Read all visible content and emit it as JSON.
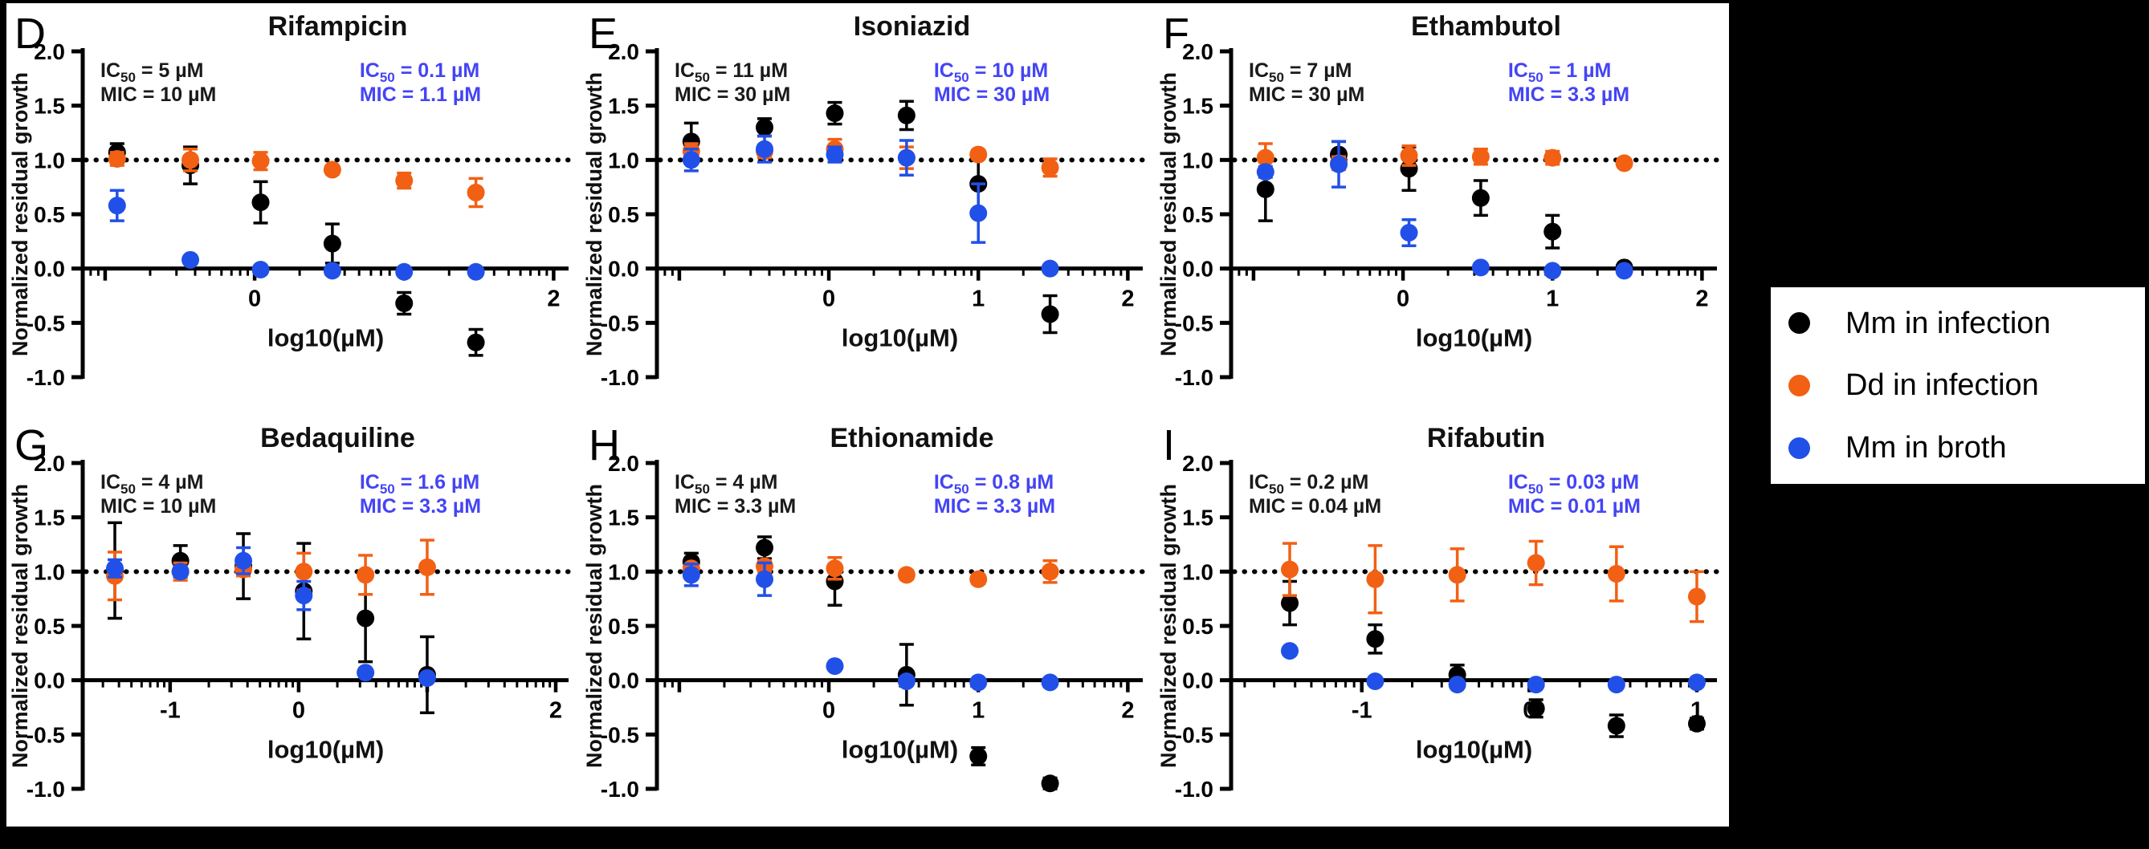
{
  "colors": {
    "series_black": "#000000",
    "series_orange": "#F26014",
    "series_blue": "#2150E8",
    "annotation_black": "#1a1a1a",
    "annotation_blue": "#4444F5",
    "panel_background": "#FFFFFF",
    "canvas_background": "#000000"
  },
  "legend": {
    "items": [
      {
        "label": "Mm in infection",
        "color": "#000000"
      },
      {
        "label": "Dd in infection",
        "color": "#F26014"
      },
      {
        "label": "Mm in broth",
        "color": "#2150E8"
      }
    ]
  },
  "chart_data": [
    {
      "type": "scatter",
      "letter": "D",
      "title": "Rifampicin",
      "xlabel": "log10(µM)",
      "ylabel": "Normalized residual growth",
      "xlim": [
        -1.15,
        2.1
      ],
      "ylim": [
        -1.0,
        2.0
      ],
      "x_ticks": [
        {
          "v": -1,
          "label": ""
        },
        {
          "v": 0,
          "label": "0"
        },
        {
          "v": 1,
          "label": ""
        },
        {
          "v": 2,
          "label": "2"
        }
      ],
      "y_ticks": [
        2.0,
        1.5,
        1.0,
        0.5,
        0.0,
        -0.5,
        -1.0
      ],
      "ref_line_y": 1.0,
      "annotations": {
        "black": [
          "IC50 = 5 µM",
          "MIC = 10 µM"
        ],
        "blue": [
          "IC50 = 0.1 µM",
          "MIC = 1.1 µM"
        ]
      },
      "x": [
        -0.92,
        -0.43,
        0.04,
        0.52,
        1.0,
        1.48
      ],
      "series": [
        {
          "name": "Mm in infection",
          "color": "#000000",
          "y": [
            1.07,
            0.95,
            0.61,
            0.23,
            -0.32,
            -0.68
          ],
          "err": [
            0.08,
            0.17,
            0.19,
            0.18,
            0.1,
            0.12
          ]
        },
        {
          "name": "Dd in infection",
          "color": "#F26014",
          "y": [
            1.01,
            1.0,
            0.99,
            0.91,
            0.81,
            0.7
          ],
          "err": [
            0.06,
            0.1,
            0.08,
            0.04,
            0.07,
            0.13
          ]
        },
        {
          "name": "Mm in broth",
          "color": "#2150E8",
          "y": [
            0.58,
            0.08,
            -0.01,
            -0.02,
            -0.03,
            -0.03
          ],
          "err": [
            0.14,
            0,
            0,
            0,
            0,
            0
          ]
        }
      ]
    },
    {
      "type": "scatter",
      "letter": "E",
      "title": "Isoniazid",
      "xlabel": "log10(µM)",
      "ylabel": "Normalized residual growth",
      "xlim": [
        -1.15,
        2.1
      ],
      "ylim": [
        -1.0,
        2.0
      ],
      "x_ticks": [
        {
          "v": -1,
          "label": ""
        },
        {
          "v": 0,
          "label": "0"
        },
        {
          "v": 1,
          "label": "1"
        },
        {
          "v": 2,
          "label": "2"
        }
      ],
      "y_ticks": [
        2.0,
        1.5,
        1.0,
        0.5,
        0.0,
        -0.5,
        -1.0
      ],
      "ref_line_y": 1.0,
      "annotations": {
        "black": [
          "IC50 = 11 µM",
          "MIC = 30 µM"
        ],
        "blue": [
          "IC50 = 10 µM",
          "MIC = 30 µM"
        ]
      },
      "x": [
        -0.92,
        -0.43,
        0.04,
        0.52,
        1.0,
        1.48
      ],
      "series": [
        {
          "name": "Mm in infection",
          "color": "#000000",
          "y": [
            1.17,
            1.3,
            1.43,
            1.41,
            0.78,
            -0.42
          ],
          "err": [
            0.17,
            0.08,
            0.1,
            0.13,
            0.25,
            0.17
          ]
        },
        {
          "name": "Dd in infection",
          "color": "#F26014",
          "y": [
            1.08,
            1.08,
            1.1,
            1.02,
            1.05,
            0.93
          ],
          "err": [
            0.07,
            0.06,
            0.09,
            0.1,
            0.04,
            0.08
          ]
        },
        {
          "name": "Mm in broth",
          "color": "#2150E8",
          "y": [
            1.0,
            1.1,
            1.05,
            1.02,
            0.51,
            0.0
          ],
          "err": [
            0.1,
            0.12,
            0.07,
            0.16,
            0.27,
            0
          ]
        }
      ]
    },
    {
      "type": "scatter",
      "letter": "F",
      "title": "Ethambutol",
      "xlabel": "log10(µM)",
      "ylabel": "Normalized residual growth",
      "xlim": [
        -1.15,
        2.1
      ],
      "ylim": [
        -1.0,
        2.0
      ],
      "x_ticks": [
        {
          "v": -1,
          "label": ""
        },
        {
          "v": 0,
          "label": "0"
        },
        {
          "v": 1,
          "label": "1"
        },
        {
          "v": 2,
          "label": "2"
        }
      ],
      "y_ticks": [
        2.0,
        1.5,
        1.0,
        0.5,
        0.0,
        -0.5,
        -1.0
      ],
      "ref_line_y": 1.0,
      "annotations": {
        "black": [
          "IC50 = 7 µM",
          "MIC = 30 µM"
        ],
        "blue": [
          "IC50 = 1 µM",
          "MIC = 3.3 µM"
        ]
      },
      "x": [
        -0.92,
        -0.43,
        0.04,
        0.52,
        1.0,
        1.48
      ],
      "series": [
        {
          "name": "Mm in infection",
          "color": "#000000",
          "y": [
            0.73,
            1.05,
            0.92,
            0.65,
            0.34,
            0.01
          ],
          "err": [
            0.29,
            0.12,
            0.2,
            0.16,
            0.15,
            0.03
          ]
        },
        {
          "name": "Dd in infection",
          "color": "#F26014",
          "y": [
            1.02,
            0.97,
            1.04,
            1.03,
            1.02,
            0.97
          ],
          "err": [
            0.13,
            0.06,
            0.09,
            0.07,
            0.06,
            0.02
          ]
        },
        {
          "name": "Mm in broth",
          "color": "#2150E8",
          "y": [
            0.89,
            0.96,
            0.33,
            0.01,
            -0.02,
            -0.02
          ],
          "err": [
            0.05,
            0.21,
            0.12,
            0,
            0,
            0
          ]
        }
      ]
    },
    {
      "type": "scatter",
      "letter": "G",
      "title": "Bedaquiline",
      "xlabel": "log10(µM)",
      "ylabel": "Normalized residual growth",
      "xlim": [
        -1.68,
        2.1
      ],
      "ylim": [
        -1.0,
        2.0
      ],
      "x_ticks": [
        {
          "v": -1,
          "label": "-1"
        },
        {
          "v": 0,
          "label": "0"
        },
        {
          "v": 1,
          "label": ""
        },
        {
          "v": 2,
          "label": "2"
        }
      ],
      "y_ticks": [
        2.0,
        1.5,
        1.0,
        0.5,
        0.0,
        -0.5,
        -1.0
      ],
      "ref_line_y": 1.0,
      "annotations": {
        "black": [
          "IC50 = 4 µM",
          "MIC = 10 µM"
        ],
        "blue": [
          "IC50 = 1.6 µM",
          "MIC = 3.3 µM"
        ]
      },
      "x": [
        -1.43,
        -0.92,
        -0.43,
        0.04,
        0.52,
        1.0
      ],
      "series": [
        {
          "name": "Mm in infection",
          "color": "#000000",
          "y": [
            1.01,
            1.1,
            1.05,
            0.82,
            0.57,
            0.05
          ],
          "err": [
            0.44,
            0.14,
            0.3,
            0.44,
            0.4,
            0.35
          ]
        },
        {
          "name": "Dd in infection",
          "color": "#F26014",
          "y": [
            0.96,
            1.0,
            1.02,
            1.0,
            0.97,
            1.04
          ],
          "err": [
            0.22,
            0.08,
            0.06,
            0.17,
            0.18,
            0.25
          ]
        },
        {
          "name": "Mm in broth",
          "color": "#2150E8",
          "y": [
            1.03,
            1.0,
            1.1,
            0.78,
            0.07,
            0.02
          ],
          "err": [
            0.08,
            0.05,
            0.12,
            0.13,
            0,
            0
          ]
        }
      ]
    },
    {
      "type": "scatter",
      "letter": "H",
      "title": "Ethionamide",
      "xlabel": "log10(µM)",
      "ylabel": "Normalized residual growth",
      "xlim": [
        -1.15,
        2.1
      ],
      "ylim": [
        -1.0,
        2.0
      ],
      "x_ticks": [
        {
          "v": -1,
          "label": ""
        },
        {
          "v": 0,
          "label": "0"
        },
        {
          "v": 1,
          "label": "1"
        },
        {
          "v": 2,
          "label": "2"
        }
      ],
      "y_ticks": [
        2.0,
        1.5,
        1.0,
        0.5,
        0.0,
        -0.5,
        -1.0
      ],
      "ref_line_y": 1.0,
      "annotations": {
        "black": [
          "IC50 = 4 µM",
          "MIC = 3.3 µM"
        ],
        "blue": [
          "IC50 = 0.8 µM",
          "MIC = 3.3 µM"
        ]
      },
      "x": [
        -0.92,
        -0.43,
        0.04,
        0.52,
        1.0,
        1.48
      ],
      "series": [
        {
          "name": "Mm in infection",
          "color": "#000000",
          "y": [
            1.09,
            1.22,
            0.91,
            0.05,
            -0.7,
            -0.95
          ],
          "err": [
            0.08,
            0.1,
            0.22,
            0.28,
            0.08,
            0.05
          ]
        },
        {
          "name": "Dd in infection",
          "color": "#F26014",
          "y": [
            1.03,
            1.05,
            1.03,
            0.97,
            0.93,
            1.0
          ],
          "err": [
            0.04,
            0.05,
            0.1,
            0.04,
            0.04,
            0.1
          ]
        },
        {
          "name": "Mm in broth",
          "color": "#2150E8",
          "y": [
            0.97,
            0.93,
            0.13,
            -0.01,
            -0.02,
            -0.02
          ],
          "err": [
            0.1,
            0.15,
            0,
            0,
            0,
            0
          ]
        }
      ]
    },
    {
      "type": "scatter",
      "letter": "I",
      "title": "Rifabutin",
      "xlabel": "log10(µM)",
      "ylabel": "Normalized residual growth",
      "xlim": [
        -1.78,
        1.12
      ],
      "ylim": [
        -1.0,
        2.0
      ],
      "x_ticks": [
        {
          "v": -1,
          "label": "-1"
        },
        {
          "v": 0,
          "label": "0"
        },
        {
          "v": 1,
          "label": "1"
        }
      ],
      "y_ticks": [
        2.0,
        1.5,
        1.0,
        0.5,
        0.0,
        -0.5,
        -1.0
      ],
      "ref_line_y": 1.0,
      "annotations": {
        "black": [
          "IC50 = 0.2 µM",
          "MIC = 0.04 µM"
        ],
        "blue": [
          "IC50 = 0.03 µM",
          "MIC = 0.01 µM"
        ]
      },
      "x": [
        -1.43,
        -0.92,
        -0.43,
        0.04,
        0.52,
        1.0
      ],
      "series": [
        {
          "name": "Mm in infection",
          "color": "#000000",
          "y": [
            0.71,
            0.38,
            0.05,
            -0.26,
            -0.42,
            -0.4
          ],
          "err": [
            0.2,
            0.13,
            0.09,
            0.08,
            0.1,
            0.05
          ]
        },
        {
          "name": "Dd in infection",
          "color": "#F26014",
          "y": [
            1.02,
            0.93,
            0.97,
            1.08,
            0.98,
            0.77
          ],
          "err": [
            0.24,
            0.31,
            0.24,
            0.2,
            0.25,
            0.23
          ]
        },
        {
          "name": "Mm in broth",
          "color": "#2150E8",
          "y": [
            0.27,
            -0.01,
            -0.04,
            -0.04,
            -0.04,
            -0.02
          ],
          "err": [
            0,
            0,
            0,
            0,
            0,
            0
          ]
        }
      ]
    }
  ]
}
